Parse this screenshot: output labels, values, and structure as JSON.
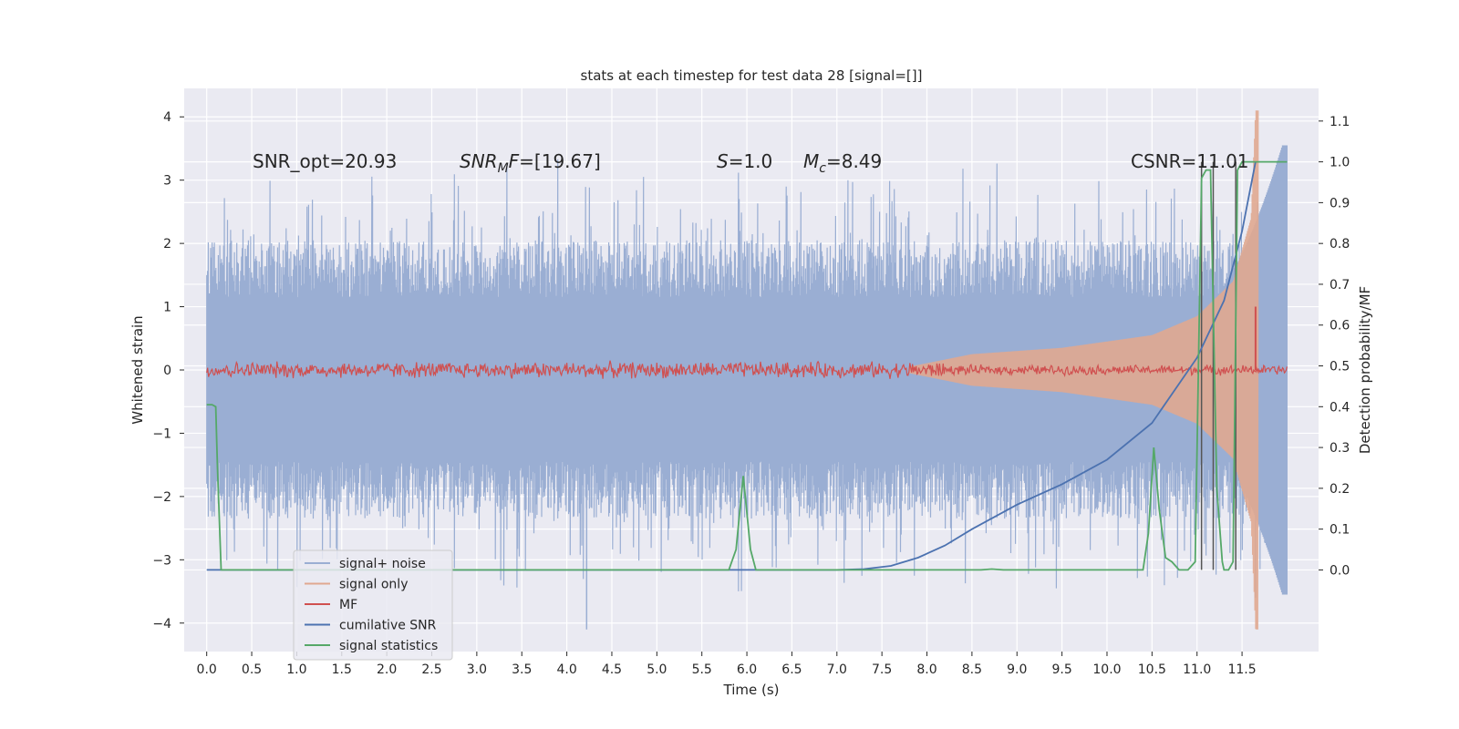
{
  "figure": {
    "title": "stats at each timestep for test data 28 [signal=[]]",
    "colors": {
      "background": "#eaeaf2",
      "grid": "#ffffff",
      "noise": "#9aaed3",
      "signal": "#e0a890",
      "mf": "#d05050",
      "cumulative_snr": "#4c72b0",
      "statistics": "#55a868",
      "event_lines": "#555555"
    }
  },
  "annotations": {
    "snr_opt": "SNR_opt=20.93",
    "snr_mf": "SNR_MF=[19.67]",
    "s": "S=1.0",
    "mc": "M_c=8.49",
    "csnr": "CSNR=11.01"
  },
  "legend": {
    "items": [
      {
        "label": "signal+ noise",
        "color": "#9aaed3"
      },
      {
        "label": "signal only",
        "color": "#e0a890"
      },
      {
        "label": "MF",
        "color": "#d05050"
      },
      {
        "label": "cumilative SNR",
        "color": "#4c72b0"
      },
      {
        "label": "signal statistics",
        "color": "#55a868"
      }
    ]
  },
  "chart_data": {
    "type": "line",
    "title": "stats at each timestep for test data 28 [signal=[]]",
    "xlabel": "Time (s)",
    "ylabel": "Whitened strain",
    "ylabel_right": "Detection probability/MF",
    "xlim": [
      -0.25,
      12.35
    ],
    "ylim": [
      -4.45,
      4.45
    ],
    "ylim_right": [
      -0.2,
      1.18
    ],
    "xticks": [
      0.0,
      0.5,
      1.0,
      1.5,
      2.0,
      2.5,
      3.0,
      3.5,
      4.0,
      4.5,
      5.0,
      5.5,
      6.0,
      6.5,
      7.0,
      7.5,
      8.0,
      8.5,
      9.0,
      9.5,
      10.0,
      10.5,
      11.0,
      11.5
    ],
    "xtick_labels": [
      "0.0",
      "0.5",
      "1.0",
      "1.5",
      "2.0",
      "2.5",
      "3.0",
      "3.5",
      "4.0",
      "4.5",
      "5.0",
      "5.5",
      "6.0",
      "6.5",
      "7.0",
      "7.5",
      "8.0",
      "8.5",
      "9.0",
      "9.5",
      "10.0",
      "10.5",
      "11.0",
      "11.5"
    ],
    "yticks": [
      -4,
      -3,
      -2,
      -1,
      0,
      1,
      2,
      3,
      4
    ],
    "ytick_labels": [
      "−4",
      "−3",
      "−2",
      "−1",
      "0",
      "1",
      "2",
      "3",
      "4"
    ],
    "yticks_right": [
      0.0,
      0.1,
      0.2,
      0.3,
      0.4,
      0.5,
      0.6,
      0.7,
      0.8,
      0.9,
      1.0,
      1.1
    ],
    "ytick_right_labels": [
      "0.0",
      "0.1",
      "0.2",
      "0.3",
      "0.4",
      "0.5",
      "0.6",
      "0.7",
      "0.8",
      "0.9",
      "1.0",
      "1.1"
    ],
    "grid": true,
    "legend_position": "lower-left",
    "series": [
      {
        "name": "signal+ noise",
        "axis": "left",
        "description_range": [
          -4.1,
          3.55
        ],
        "x_range": [
          0.0,
          12.0
        ],
        "peaks": [
          {
            "x": 11.65,
            "y": -3.6
          },
          {
            "x": 4.22,
            "y": -4.1
          }
        ]
      },
      {
        "name": "signal only",
        "axis": "left",
        "x_range": [
          7.8,
          11.68
        ],
        "envelope": {
          "x": [
            7.8,
            8.5,
            9.5,
            10.5,
            11.0,
            11.4,
            11.6,
            11.65
          ],
          "amp": [
            0.05,
            0.25,
            0.35,
            0.55,
            0.85,
            1.4,
            2.4,
            4.1
          ]
        }
      },
      {
        "name": "MF",
        "axis": "left",
        "x_range": [
          0.0,
          12.0
        ],
        "amp": 0.1,
        "spike": {
          "x": 11.65,
          "y": 1.0
        }
      },
      {
        "name": "cumilative SNR",
        "axis": "right",
        "x": [
          0.0,
          6.0,
          7.0,
          7.3,
          7.6,
          7.9,
          8.2,
          8.5,
          9.0,
          9.5,
          10.0,
          10.5,
          11.0,
          11.3,
          11.5,
          11.65
        ],
        "y": [
          0.0,
          0.0,
          0.0,
          0.002,
          0.01,
          0.03,
          0.06,
          0.1,
          0.16,
          0.21,
          0.27,
          0.36,
          0.52,
          0.66,
          0.83,
          1.0
        ]
      },
      {
        "name": "signal statistics",
        "axis": "right",
        "x": [
          0.0,
          0.06,
          0.1,
          0.12,
          0.16,
          0.2,
          5.8,
          5.88,
          5.96,
          6.04,
          6.1,
          6.2,
          8.6,
          8.72,
          8.85,
          10.4,
          10.46,
          10.52,
          10.58,
          10.65,
          10.72,
          10.8,
          10.9,
          10.98,
          11.05,
          11.1,
          11.15,
          11.22,
          11.28,
          11.3,
          11.35,
          11.4,
          11.45,
          11.5,
          11.55,
          11.6,
          11.65,
          11.7,
          11.75,
          11.8,
          12.0
        ],
        "y": [
          0.405,
          0.405,
          0.4,
          0.25,
          0.0,
          0.0,
          0.0,
          0.05,
          0.23,
          0.05,
          0.0,
          0.0,
          0.0,
          0.002,
          0.0,
          0.0,
          0.09,
          0.3,
          0.15,
          0.03,
          0.02,
          0.0,
          0.0,
          0.02,
          0.96,
          0.98,
          0.98,
          0.2,
          0.02,
          0.0,
          0.0,
          0.02,
          0.98,
          1.0,
          1.0,
          1.0,
          1.0,
          1.0,
          1.0,
          1.0,
          1.0
        ]
      }
    ],
    "event_lines": [
      11.05,
      11.18,
      11.43
    ]
  }
}
